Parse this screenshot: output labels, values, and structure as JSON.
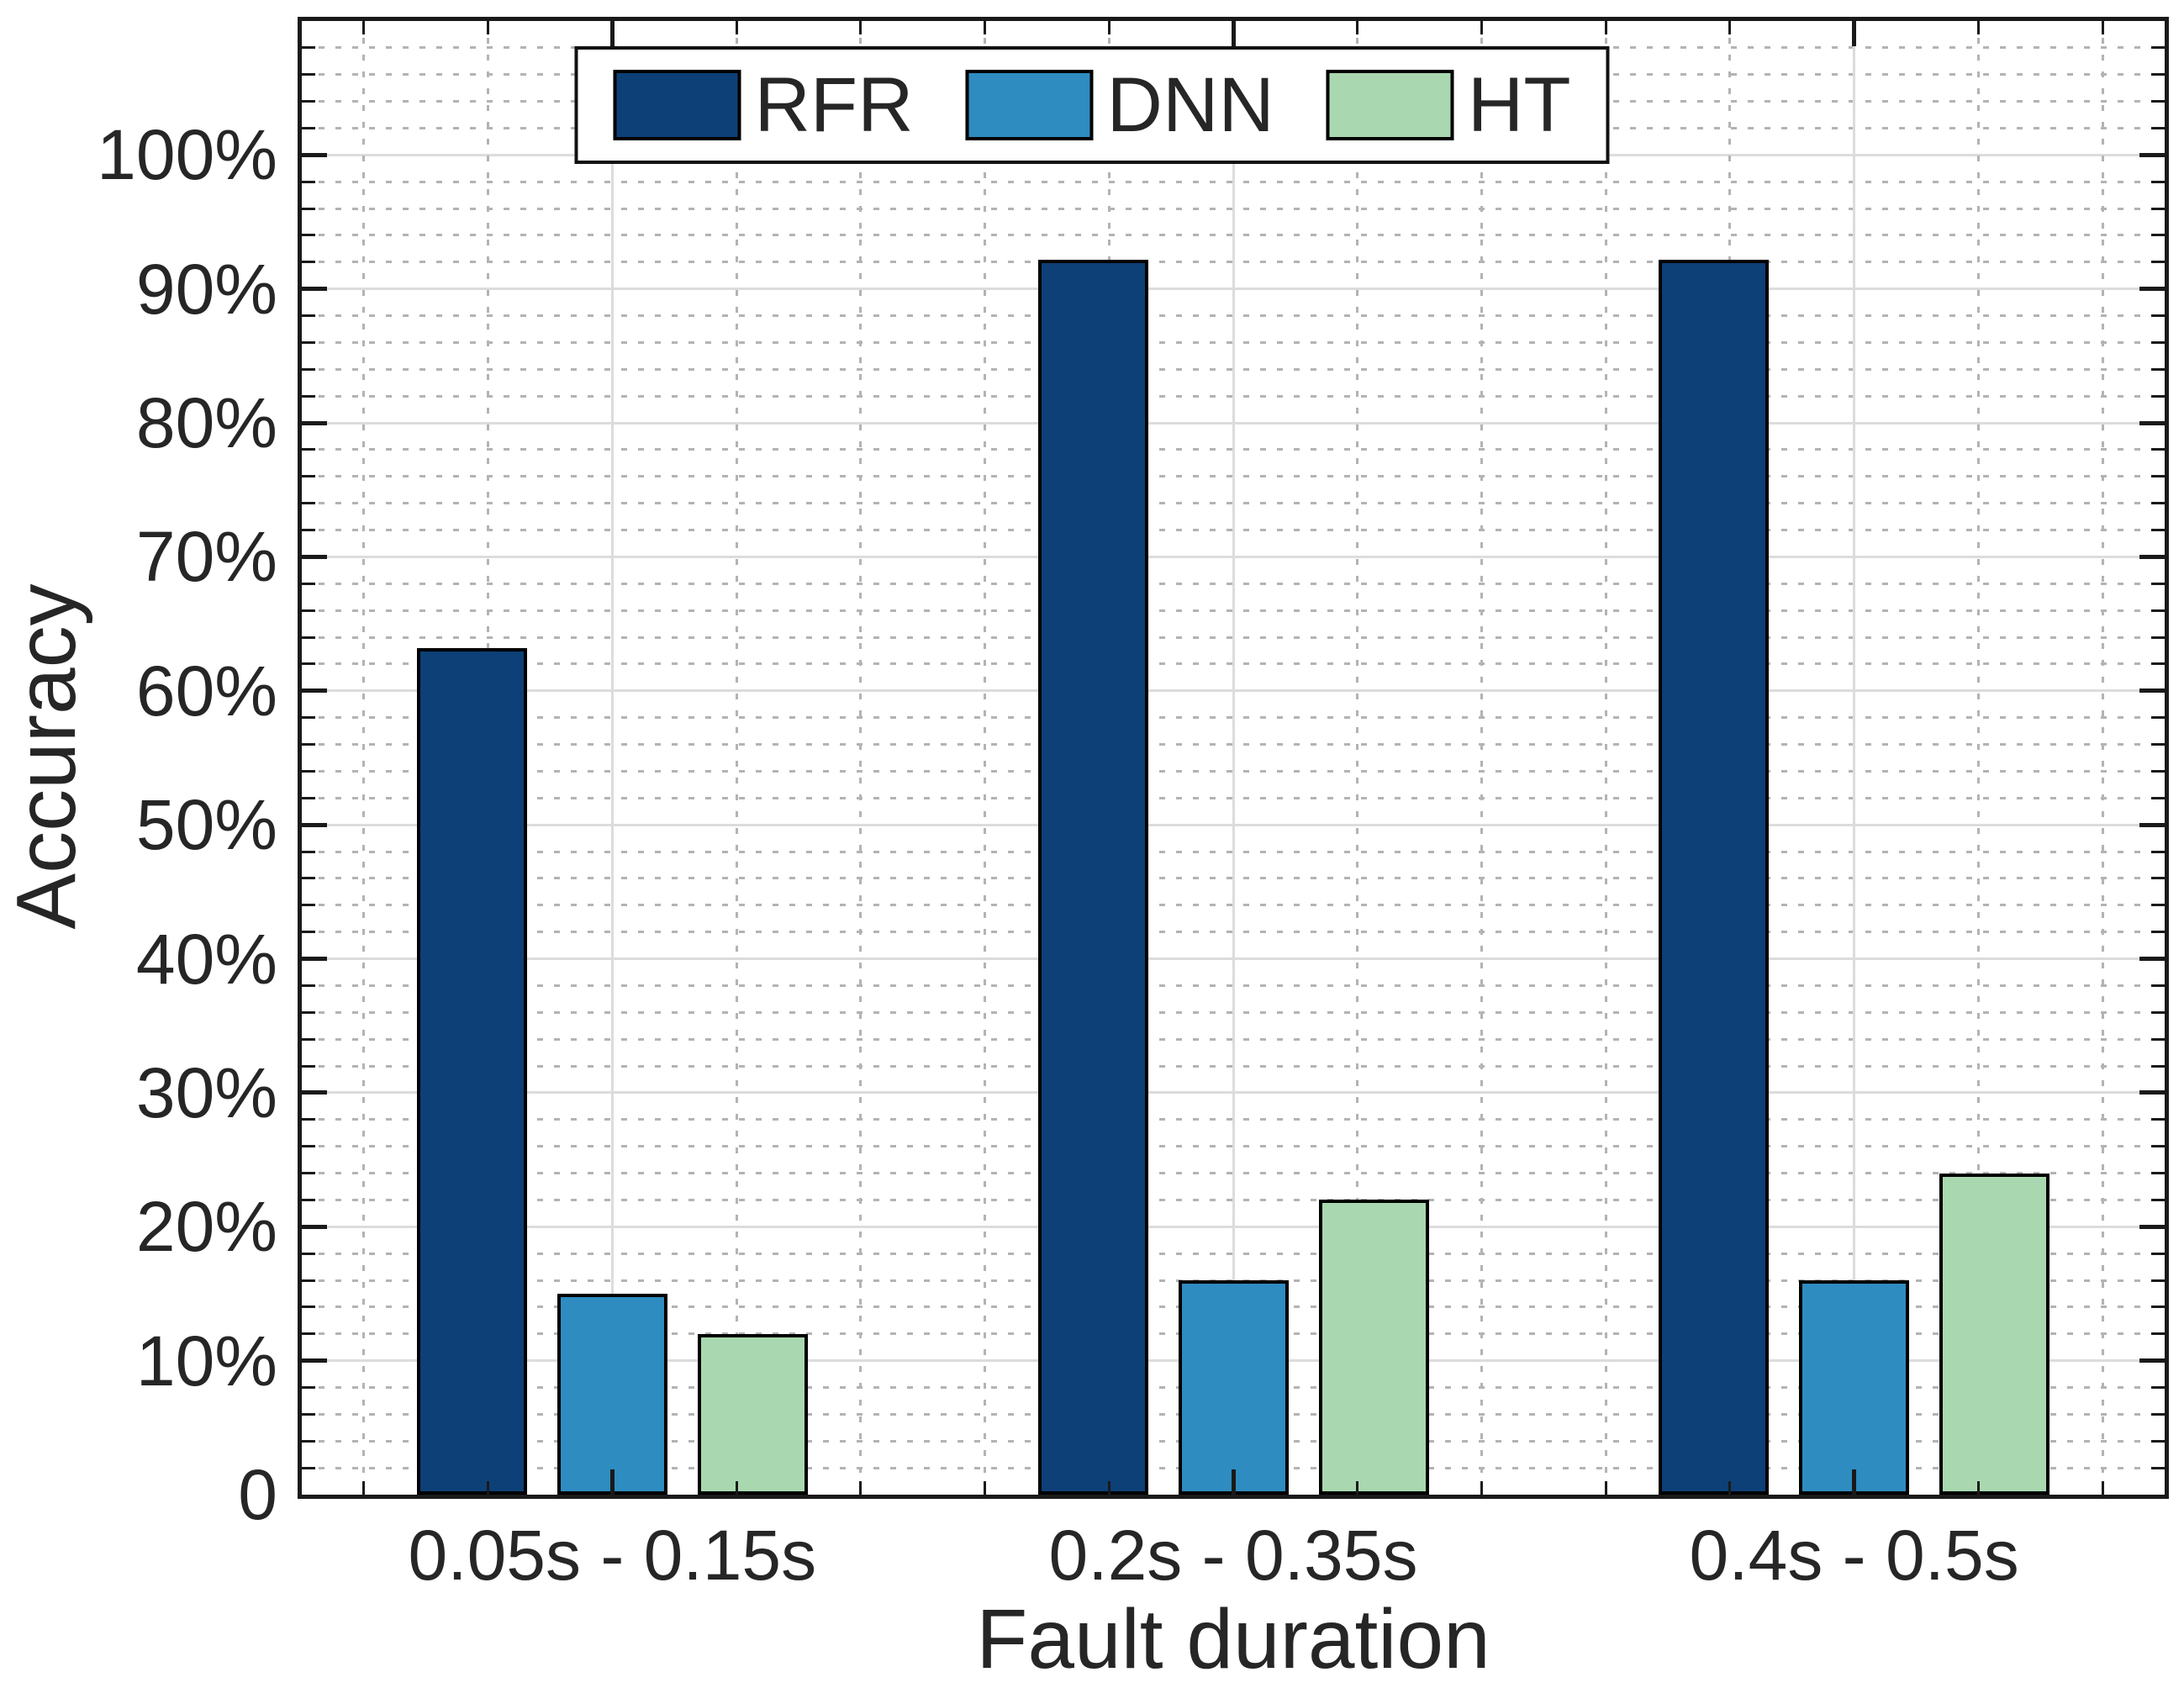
{
  "figure": {
    "ylabel": "Accuracy",
    "xlabel": "Fault duration"
  },
  "chart_data": {
    "type": "bar",
    "title": "",
    "xlabel": "Fault duration",
    "ylabel": "Accuracy",
    "categories": [
      "0.05s - 0.15s",
      "0.2s - 0.35s",
      "0.4s - 0.5s"
    ],
    "series": [
      {
        "name": "RFR",
        "color": "#0d4077",
        "values": [
          63.2,
          92.2,
          92.2
        ]
      },
      {
        "name": "DNN",
        "color": "#2e8cc0",
        "values": [
          15.0,
          16.0,
          16.0
        ]
      },
      {
        "name": "HT",
        "color": "#a9d8b0",
        "values": [
          12.0,
          22.0,
          24.0
        ]
      }
    ],
    "ylim": [
      0,
      110
    ],
    "y_major_step": 10,
    "y_minor_step": 2,
    "y_tick_suffix": "%",
    "y_zero_label": "0",
    "x_minor_step": 0.2,
    "legend_position": "top-center",
    "grid": {
      "major_style": "solid",
      "minor_style": "dotted",
      "major_color": "#dcdcdc",
      "minor_color": "#b3b3b3"
    },
    "axis_color": "#1a1a1a",
    "bar_edge_color": "#000000",
    "text_color": "#262626"
  }
}
